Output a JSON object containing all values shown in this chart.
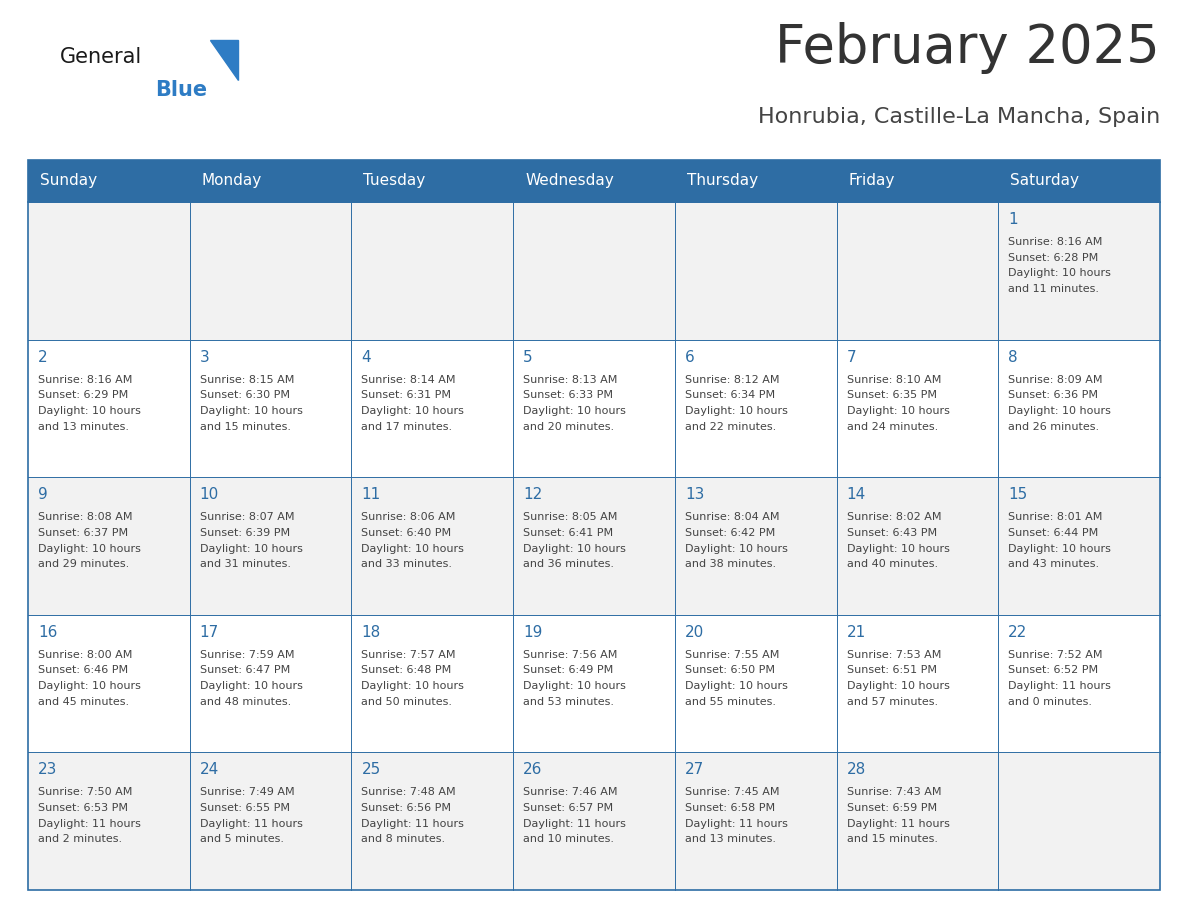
{
  "title": "February 2025",
  "subtitle": "Honrubia, Castille-La Mancha, Spain",
  "days_of_week": [
    "Sunday",
    "Monday",
    "Tuesday",
    "Wednesday",
    "Thursday",
    "Friday",
    "Saturday"
  ],
  "header_bg": "#2E6DA4",
  "header_text": "#FFFFFF",
  "row_bg_light": "#F2F2F2",
  "row_bg_white": "#FFFFFF",
  "border_color": "#2E6DA4",
  "title_color": "#333333",
  "subtitle_color": "#444444",
  "day_number_color": "#2E6DA4",
  "cell_text_color": "#444444",
  "logo_general_color": "#1a1a1a",
  "logo_blue_color": "#2E7CC4",
  "calendar_data": [
    {
      "day": 1,
      "row": 0,
      "col": 6,
      "sunrise": "8:16 AM",
      "sunset": "6:28 PM",
      "daylight": "10 hours and 11 minutes."
    },
    {
      "day": 2,
      "row": 1,
      "col": 0,
      "sunrise": "8:16 AM",
      "sunset": "6:29 PM",
      "daylight": "10 hours and 13 minutes."
    },
    {
      "day": 3,
      "row": 1,
      "col": 1,
      "sunrise": "8:15 AM",
      "sunset": "6:30 PM",
      "daylight": "10 hours and 15 minutes."
    },
    {
      "day": 4,
      "row": 1,
      "col": 2,
      "sunrise": "8:14 AM",
      "sunset": "6:31 PM",
      "daylight": "10 hours and 17 minutes."
    },
    {
      "day": 5,
      "row": 1,
      "col": 3,
      "sunrise": "8:13 AM",
      "sunset": "6:33 PM",
      "daylight": "10 hours and 20 minutes."
    },
    {
      "day": 6,
      "row": 1,
      "col": 4,
      "sunrise": "8:12 AM",
      "sunset": "6:34 PM",
      "daylight": "10 hours and 22 minutes."
    },
    {
      "day": 7,
      "row": 1,
      "col": 5,
      "sunrise": "8:10 AM",
      "sunset": "6:35 PM",
      "daylight": "10 hours and 24 minutes."
    },
    {
      "day": 8,
      "row": 1,
      "col": 6,
      "sunrise": "8:09 AM",
      "sunset": "6:36 PM",
      "daylight": "10 hours and 26 minutes."
    },
    {
      "day": 9,
      "row": 2,
      "col": 0,
      "sunrise": "8:08 AM",
      "sunset": "6:37 PM",
      "daylight": "10 hours and 29 minutes."
    },
    {
      "day": 10,
      "row": 2,
      "col": 1,
      "sunrise": "8:07 AM",
      "sunset": "6:39 PM",
      "daylight": "10 hours and 31 minutes."
    },
    {
      "day": 11,
      "row": 2,
      "col": 2,
      "sunrise": "8:06 AM",
      "sunset": "6:40 PM",
      "daylight": "10 hours and 33 minutes."
    },
    {
      "day": 12,
      "row": 2,
      "col": 3,
      "sunrise": "8:05 AM",
      "sunset": "6:41 PM",
      "daylight": "10 hours and 36 minutes."
    },
    {
      "day": 13,
      "row": 2,
      "col": 4,
      "sunrise": "8:04 AM",
      "sunset": "6:42 PM",
      "daylight": "10 hours and 38 minutes."
    },
    {
      "day": 14,
      "row": 2,
      "col": 5,
      "sunrise": "8:02 AM",
      "sunset": "6:43 PM",
      "daylight": "10 hours and 40 minutes."
    },
    {
      "day": 15,
      "row": 2,
      "col": 6,
      "sunrise": "8:01 AM",
      "sunset": "6:44 PM",
      "daylight": "10 hours and 43 minutes."
    },
    {
      "day": 16,
      "row": 3,
      "col": 0,
      "sunrise": "8:00 AM",
      "sunset": "6:46 PM",
      "daylight": "10 hours and 45 minutes."
    },
    {
      "day": 17,
      "row": 3,
      "col": 1,
      "sunrise": "7:59 AM",
      "sunset": "6:47 PM",
      "daylight": "10 hours and 48 minutes."
    },
    {
      "day": 18,
      "row": 3,
      "col": 2,
      "sunrise": "7:57 AM",
      "sunset": "6:48 PM",
      "daylight": "10 hours and 50 minutes."
    },
    {
      "day": 19,
      "row": 3,
      "col": 3,
      "sunrise": "7:56 AM",
      "sunset": "6:49 PM",
      "daylight": "10 hours and 53 minutes."
    },
    {
      "day": 20,
      "row": 3,
      "col": 4,
      "sunrise": "7:55 AM",
      "sunset": "6:50 PM",
      "daylight": "10 hours and 55 minutes."
    },
    {
      "day": 21,
      "row": 3,
      "col": 5,
      "sunrise": "7:53 AM",
      "sunset": "6:51 PM",
      "daylight": "10 hours and 57 minutes."
    },
    {
      "day": 22,
      "row": 3,
      "col": 6,
      "sunrise": "7:52 AM",
      "sunset": "6:52 PM",
      "daylight": "11 hours and 0 minutes."
    },
    {
      "day": 23,
      "row": 4,
      "col": 0,
      "sunrise": "7:50 AM",
      "sunset": "6:53 PM",
      "daylight": "11 hours and 2 minutes."
    },
    {
      "day": 24,
      "row": 4,
      "col": 1,
      "sunrise": "7:49 AM",
      "sunset": "6:55 PM",
      "daylight": "11 hours and 5 minutes."
    },
    {
      "day": 25,
      "row": 4,
      "col": 2,
      "sunrise": "7:48 AM",
      "sunset": "6:56 PM",
      "daylight": "11 hours and 8 minutes."
    },
    {
      "day": 26,
      "row": 4,
      "col": 3,
      "sunrise": "7:46 AM",
      "sunset": "6:57 PM",
      "daylight": "11 hours and 10 minutes."
    },
    {
      "day": 27,
      "row": 4,
      "col": 4,
      "sunrise": "7:45 AM",
      "sunset": "6:58 PM",
      "daylight": "11 hours and 13 minutes."
    },
    {
      "day": 28,
      "row": 4,
      "col": 5,
      "sunrise": "7:43 AM",
      "sunset": "6:59 PM",
      "daylight": "11 hours and 15 minutes."
    }
  ]
}
